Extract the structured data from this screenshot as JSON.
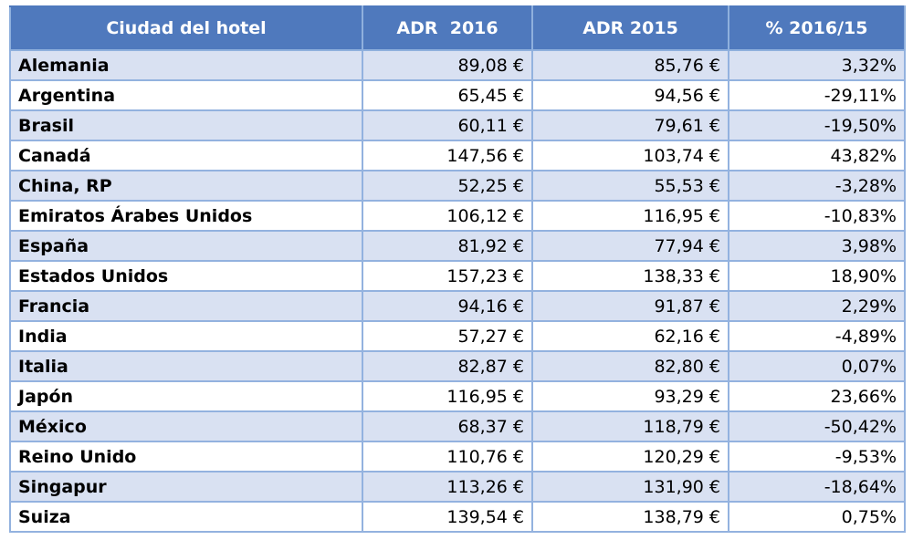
{
  "table": {
    "headers": [
      "Ciudad del hotel",
      "ADR  2016",
      "ADR 2015",
      "% 2016/15"
    ],
    "rows": [
      [
        "Alemania",
        "89,08 €",
        "85,76 €",
        "3,32%"
      ],
      [
        "Argentina",
        "65,45 €",
        "94,56 €",
        "-29,11%"
      ],
      [
        "Brasil",
        "60,11 €",
        "79,61 €",
        "-19,50%"
      ],
      [
        "Canadá",
        "147,56 €",
        "103,74 €",
        "43,82%"
      ],
      [
        "China, RP",
        "52,25 €",
        "55,53 €",
        "-3,28%"
      ],
      [
        "Emiratos Árabes Unidos",
        "106,12 €",
        "116,95 €",
        "-10,83%"
      ],
      [
        "España",
        "81,92 €",
        "77,94 €",
        "3,98%"
      ],
      [
        "Estados Unidos",
        "157,23 €",
        "138,33 €",
        "18,90%"
      ],
      [
        "Francia",
        "94,16 €",
        "91,87 €",
        "2,29%"
      ],
      [
        "India",
        "57,27 €",
        "62,16 €",
        "-4,89%"
      ],
      [
        "Italia",
        "82,87 €",
        "82,80 €",
        "0,07%"
      ],
      [
        "Japón",
        "116,95 €",
        "93,29 €",
        "23,66%"
      ],
      [
        "México",
        "68,37 €",
        "118,79 €",
        "-50,42%"
      ],
      [
        "Reino Unido",
        "110,76 €",
        "120,29 €",
        "-9,53%"
      ],
      [
        "Singapur",
        "113,26 €",
        "131,90 €",
        "-18,64%"
      ],
      [
        "Suiza",
        "139,54 €",
        "138,79 €",
        "0,75%"
      ]
    ]
  },
  "colors": {
    "header_bg": "#4f79bd",
    "header_text": "#ffffff",
    "band_row": "#d9e1f2",
    "plain_row": "#ffffff",
    "grid": "#93b2df"
  }
}
